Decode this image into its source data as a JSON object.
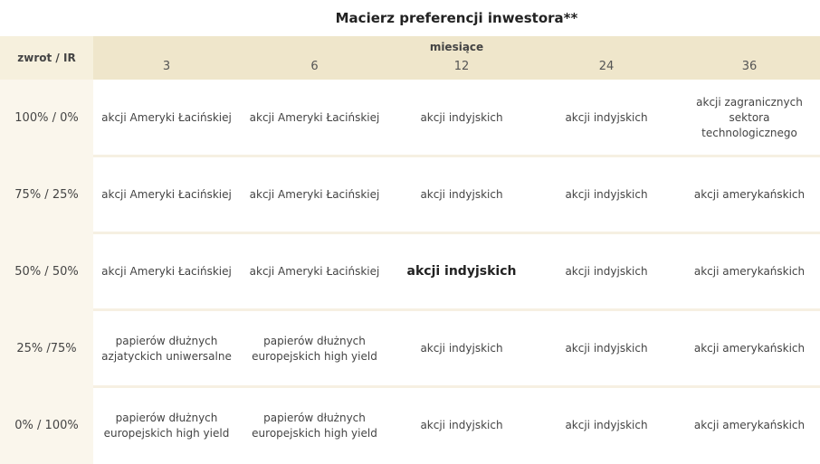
{
  "title": "Macierz preferencji inwestora**",
  "table": {
    "corner": "zwrot / IR",
    "group_header": "miesiące",
    "columns": [
      3,
      6,
      12,
      24,
      36
    ],
    "highlight": {
      "row": 2,
      "col": 2
    },
    "rows": [
      {
        "label": "100% / 0%",
        "cells": [
          [
            "akcji Ameryki Łacińskiej"
          ],
          [
            "akcji Ameryki Łacińskiej"
          ],
          [
            "akcji indyjskich"
          ],
          [
            "akcji indyjskich"
          ],
          [
            "akcji zagranicznych",
            "sektora",
            "technologicznego"
          ]
        ]
      },
      {
        "label": "75% / 25%",
        "cells": [
          [
            "akcji Ameryki Łacińskiej"
          ],
          [
            "akcji Ameryki Łacińskiej"
          ],
          [
            "akcji indyjskich"
          ],
          [
            "akcji indyjskich"
          ],
          [
            "akcji amerykańskich"
          ]
        ]
      },
      {
        "label": "50% / 50%",
        "cells": [
          [
            "akcji Ameryki Łacińskiej"
          ],
          [
            "akcji Ameryki Łacińskiej"
          ],
          [
            "akcji indyjskich"
          ],
          [
            "akcji indyjskich"
          ],
          [
            "akcji amerykańskich"
          ]
        ]
      },
      {
        "label": "25% /75%",
        "cells": [
          [
            "papierów dłużnych",
            "azjatyckich uniwersalne"
          ],
          [
            "papierów dłużnych",
            "europejskich high yield"
          ],
          [
            "akcji indyjskich"
          ],
          [
            "akcji indyjskich"
          ],
          [
            "akcji amerykańskich"
          ]
        ]
      },
      {
        "label": "0% / 100%",
        "cells": [
          [
            "papierów dłużnych",
            "europejskich high yield"
          ],
          [
            "papierów dłużnych",
            "europejskich high yield"
          ],
          [
            "akcji indyjskich"
          ],
          [
            "akcji indyjskich"
          ],
          [
            "akcji amerykańskich"
          ]
        ]
      }
    ]
  }
}
